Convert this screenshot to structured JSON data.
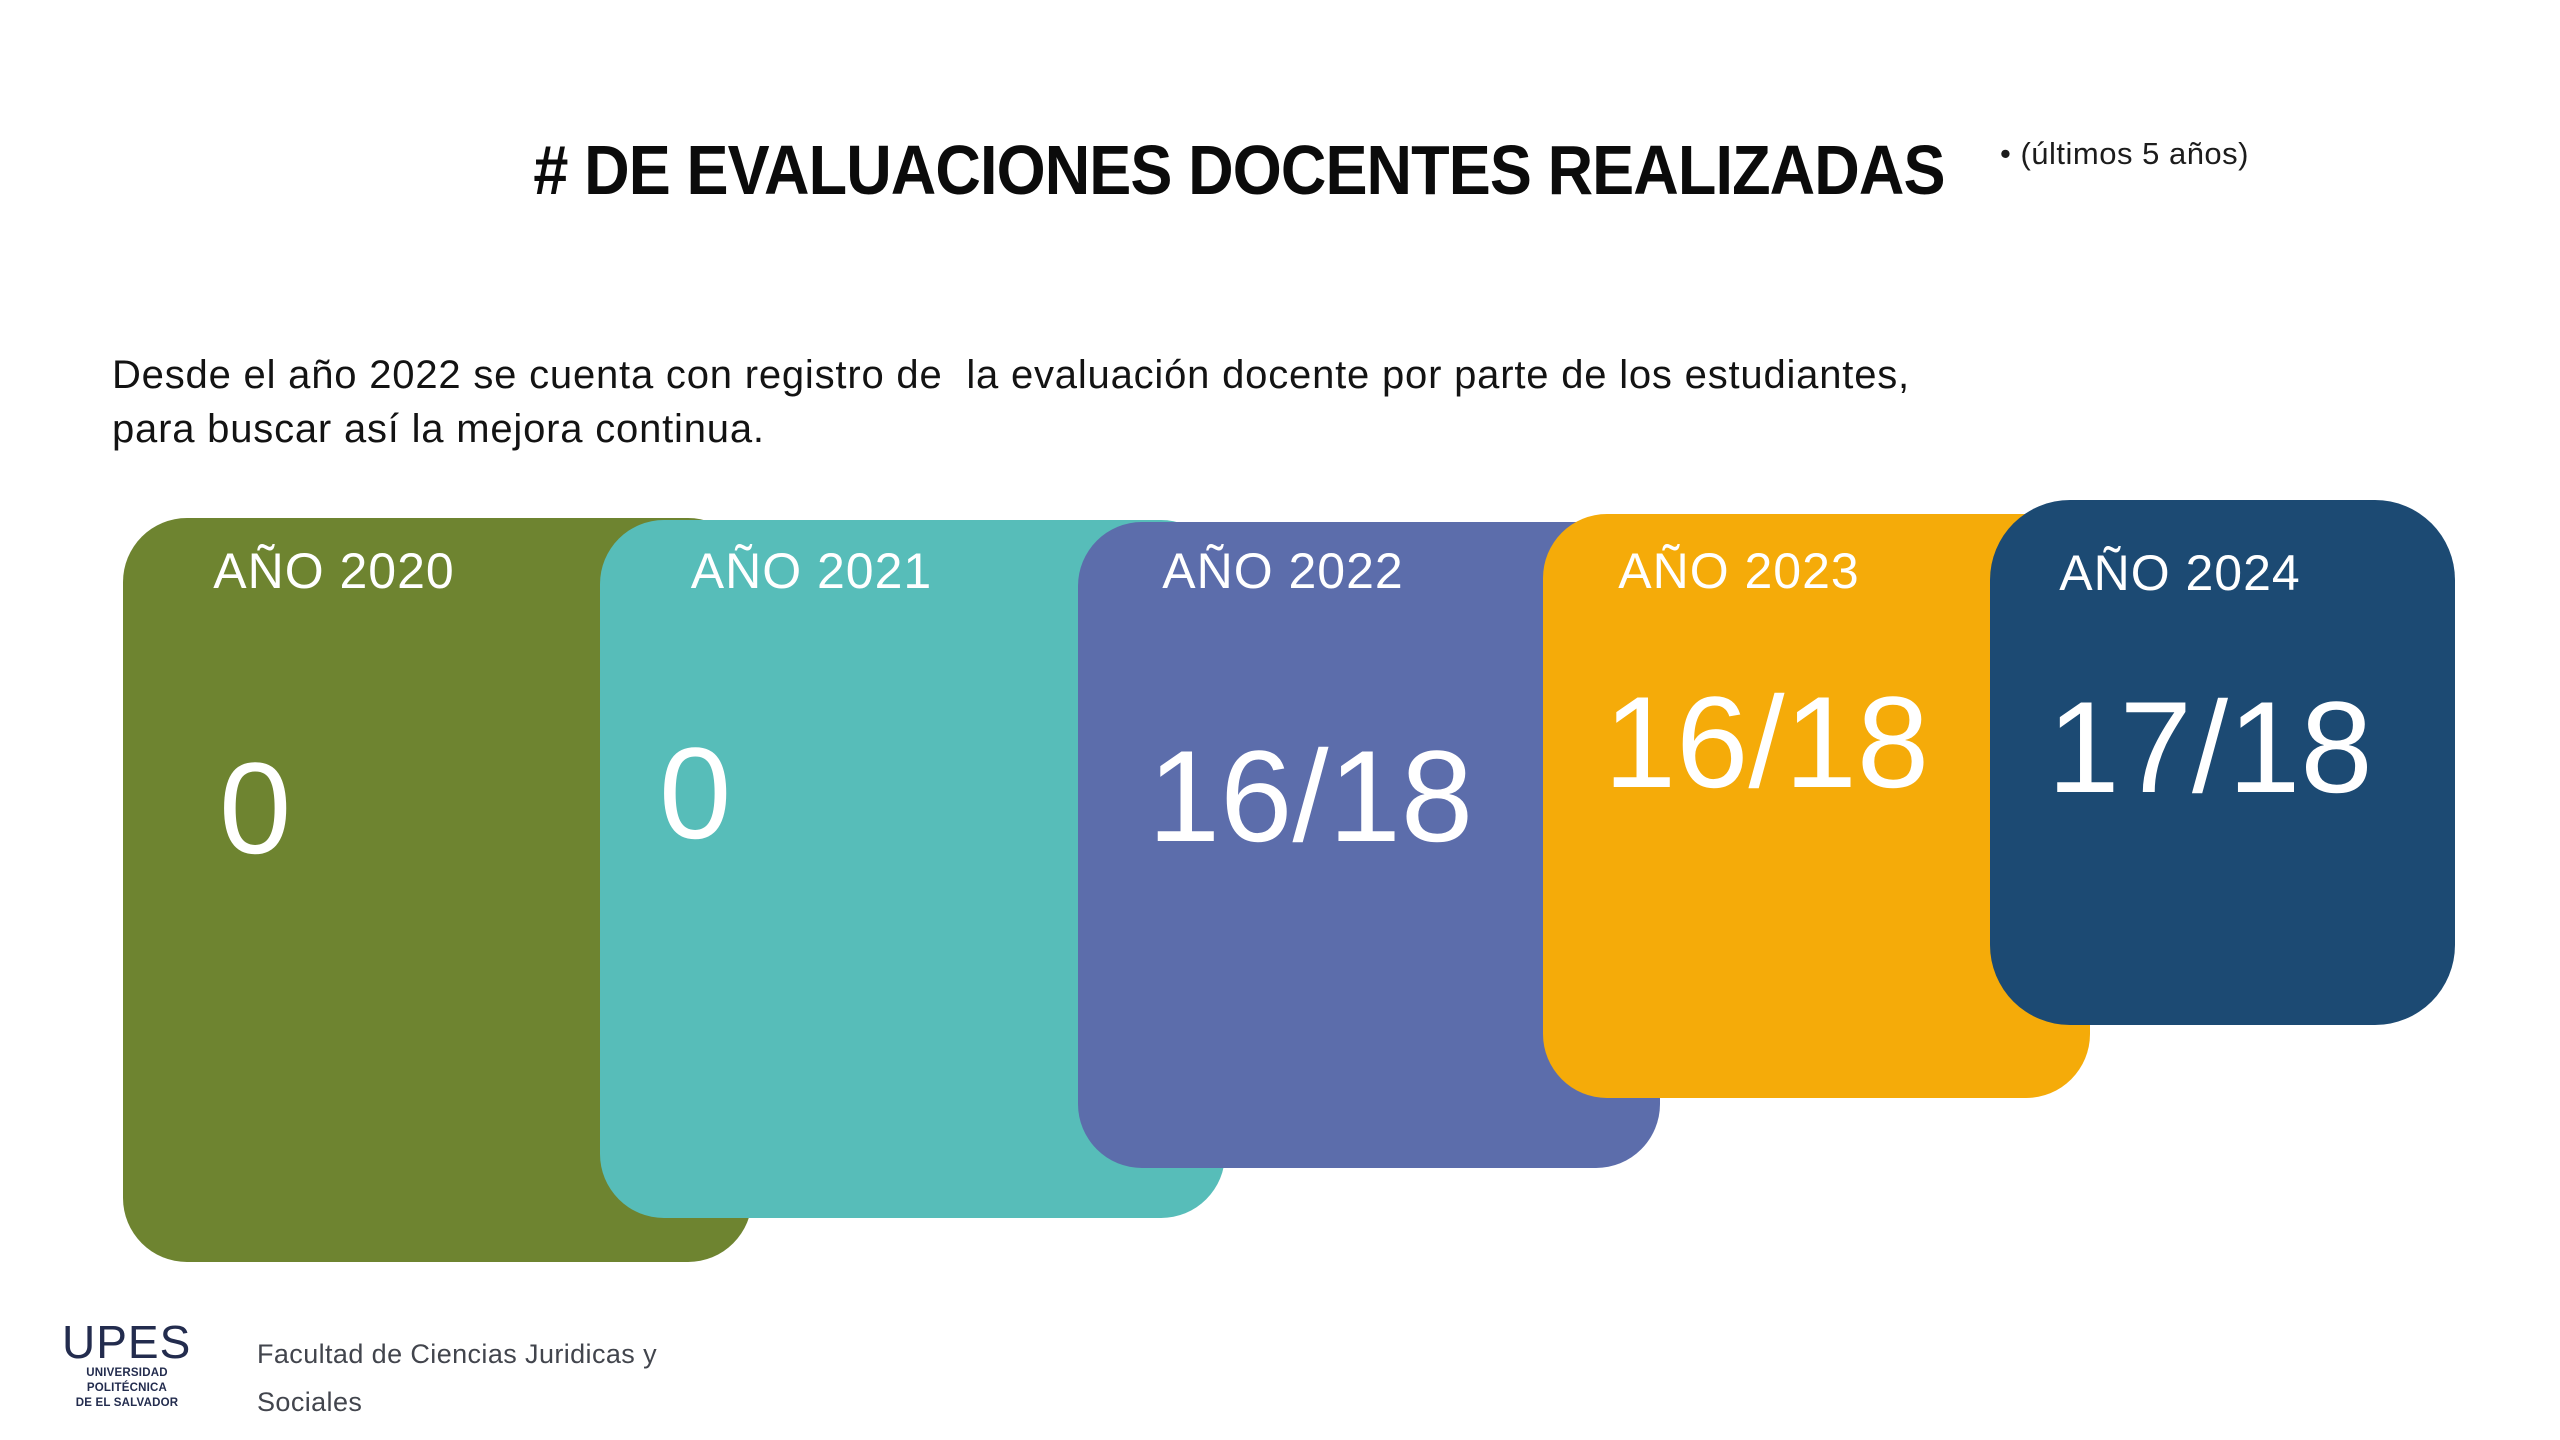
{
  "slide": {
    "title": "# DE EVALUACIONES DOCENTES REALIZADAS",
    "title_note": "• (últimos 5 años)",
    "description": {
      "line1": "Desde el año 2022 se cuenta con registro de  la evaluación docente por parte de los estudiantes,",
      "line2": "para buscar así la mejora continua."
    },
    "cards": [
      {
        "label": "AÑO 2020",
        "value": "0",
        "color": "#6e8430"
      },
      {
        "label": "AÑO 2021",
        "value": "0",
        "color": "#57bdb9"
      },
      {
        "label": "AÑO 2022",
        "value": "16/18",
        "color": "#5c6dab"
      },
      {
        "label": "AÑO 2023",
        "value": "16/18",
        "color": "#f5ab09"
      },
      {
        "label": "AÑO 2024",
        "value": "17/18",
        "color": "#1c4a73"
      }
    ],
    "footer": {
      "logo_acronym": "UPES",
      "logo_university_line1": "UNIVERSIDAD POLITÉCNICA",
      "logo_university_line2": "DE EL SALVADOR",
      "faculty_line1": "Facultad de Ciencias Juridicas y",
      "faculty_line2": "Sociales"
    }
  },
  "chart_data": {
    "type": "bar",
    "title": "# DE EVALUACIONES DOCENTES REALIZADAS",
    "subtitle": "(últimos 5 años)",
    "categories": [
      "AÑO 2020",
      "AÑO 2021",
      "AÑO 2022",
      "AÑO 2023",
      "AÑO 2024"
    ],
    "values": [
      0,
      0,
      16,
      16,
      17
    ],
    "value_labels": [
      "0",
      "0",
      "16/18",
      "16/18",
      "17/18"
    ],
    "denominator": 18,
    "annotation": "Desde el año 2022 se cuenta con registro de la evaluación docente por parte de los estudiantes, para buscar así la mejora continua.",
    "legend_position": "none",
    "grid": false,
    "colors": [
      "#6e8430",
      "#57bdb9",
      "#5c6dab",
      "#f5ab09",
      "#1c4a73"
    ]
  }
}
